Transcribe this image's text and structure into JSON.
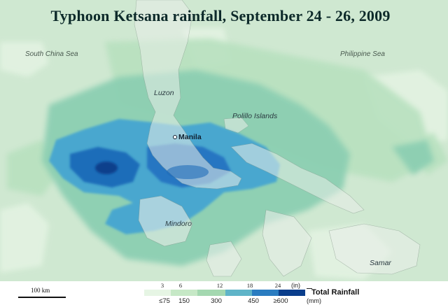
{
  "title": "Typhoon Ketsana rainfall, September 24 - 26, 2009",
  "labels": {
    "seas": {
      "south_china_sea": "South China Sea",
      "philippine_sea": "Philippine Sea"
    },
    "places": {
      "luzon": "Luzon",
      "polillo": "Polillo Islands",
      "mindoro": "Mindoro",
      "samar": "Samar"
    },
    "cities": {
      "manila": "Manila"
    }
  },
  "scale": {
    "label": "100 km"
  },
  "legend": {
    "title": "Total Rainfall",
    "inch_unit": "(in)",
    "mm_unit": "(mm)",
    "inch_ticks": [
      "3",
      "6",
      "12",
      "18",
      "24"
    ],
    "mm_ticks": [
      "≤75",
      "150",
      "300",
      "450",
      "≥600"
    ],
    "colors": [
      "#e6f5e4",
      "#c6e8c6",
      "#a4d8b0",
      "#5fb4c8",
      "#2a7cc0",
      "#0a3e8c"
    ]
  }
}
